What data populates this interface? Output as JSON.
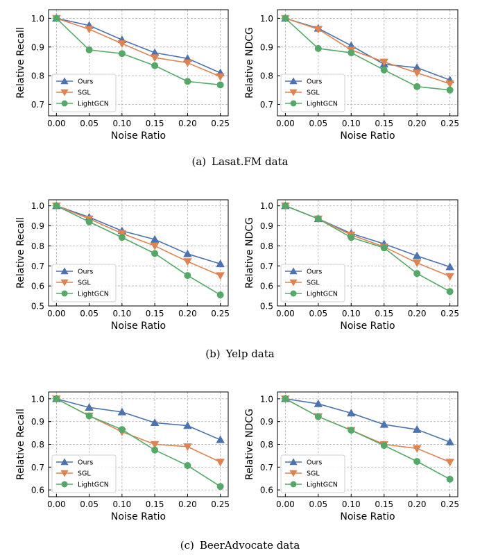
{
  "colors": {
    "Ours": "#4c72b0",
    "SGL": "#dd8452",
    "LightGCN": "#55a868"
  },
  "captions": [
    {
      "label": "(a)",
      "text": "Lasat.FM data"
    },
    {
      "label": "(b)",
      "text": "Yelp data"
    },
    {
      "label": "(c)",
      "text": "BeerAdvocate data"
    }
  ],
  "chart_data": [
    {
      "type": "line",
      "dataset": "Lasat.FM",
      "ylabel": "Relative Recall",
      "xlabel": "Noise Ratio",
      "x": [
        0.0,
        0.05,
        0.1,
        0.15,
        0.2,
        0.25
      ],
      "xticks": [
        "0.00",
        "0.05",
        "0.10",
        "0.15",
        "0.20",
        "0.25"
      ],
      "ylim": [
        0.66,
        1.03
      ],
      "yticks": [
        0.7,
        0.8,
        0.9,
        1.0
      ],
      "ytick_labels": [
        "0.7",
        "0.8",
        "0.9",
        "1.0"
      ],
      "grid": true,
      "legend": "lower-left",
      "series": [
        {
          "name": "Ours",
          "marker": "triangle-up",
          "values": [
            1.0,
            0.975,
            0.925,
            0.88,
            0.86,
            0.81
          ]
        },
        {
          "name": "SGL",
          "marker": "triangle-down",
          "values": [
            1.0,
            0.962,
            0.912,
            0.863,
            0.845,
            0.797
          ]
        },
        {
          "name": "LightGCN",
          "marker": "circle",
          "values": [
            1.0,
            0.89,
            0.877,
            0.835,
            0.78,
            0.768
          ]
        }
      ]
    },
    {
      "type": "line",
      "dataset": "Lasat.FM",
      "ylabel": "Relative NDCG",
      "xlabel": "Noise Ratio",
      "x": [
        0.0,
        0.05,
        0.1,
        0.15,
        0.2,
        0.25
      ],
      "xticks": [
        "0.00",
        "0.05",
        "0.10",
        "0.15",
        "0.20",
        "0.25"
      ],
      "ylim": [
        0.66,
        1.03
      ],
      "yticks": [
        0.7,
        0.8,
        0.9,
        1.0
      ],
      "ytick_labels": [
        "0.7",
        "0.8",
        "0.9",
        "1.0"
      ],
      "grid": true,
      "legend": "lower-left",
      "series": [
        {
          "name": "Ours",
          "marker": "triangle-up",
          "values": [
            1.0,
            0.965,
            0.905,
            0.84,
            0.828,
            0.785
          ]
        },
        {
          "name": "SGL",
          "marker": "triangle-down",
          "values": [
            1.0,
            0.962,
            0.89,
            0.848,
            0.81,
            0.772
          ]
        },
        {
          "name": "LightGCN",
          "marker": "circle",
          "values": [
            1.0,
            0.895,
            0.88,
            0.82,
            0.762,
            0.75
          ]
        }
      ]
    },
    {
      "type": "line",
      "dataset": "Yelp",
      "ylabel": "Relative Recall",
      "xlabel": "Noise Ratio",
      "x": [
        0.0,
        0.05,
        0.1,
        0.15,
        0.2,
        0.25
      ],
      "xticks": [
        "0.00",
        "0.05",
        "0.10",
        "0.15",
        "0.20",
        "0.25"
      ],
      "ylim": [
        0.5,
        1.03
      ],
      "yticks": [
        0.5,
        0.6,
        0.7,
        0.8,
        0.9,
        1.0
      ],
      "ytick_labels": [
        "0.5",
        "0.6",
        "0.7",
        "0.8",
        "0.9",
        "1.0"
      ],
      "grid": true,
      "legend": "lower-left",
      "series": [
        {
          "name": "Ours",
          "marker": "triangle-up",
          "values": [
            1.0,
            0.943,
            0.875,
            0.832,
            0.76,
            0.71
          ]
        },
        {
          "name": "SGL",
          "marker": "triangle-down",
          "values": [
            1.0,
            0.935,
            0.862,
            0.8,
            0.722,
            0.652
          ]
        },
        {
          "name": "LightGCN",
          "marker": "circle",
          "values": [
            1.0,
            0.92,
            0.842,
            0.762,
            0.652,
            0.555
          ]
        }
      ]
    },
    {
      "type": "line",
      "dataset": "Yelp",
      "ylabel": "Relative NDCG",
      "xlabel": "Noise Ratio",
      "x": [
        0.0,
        0.05,
        0.1,
        0.15,
        0.2,
        0.25
      ],
      "xticks": [
        "0.00",
        "0.05",
        "0.10",
        "0.15",
        "0.20",
        "0.25"
      ],
      "ylim": [
        0.5,
        1.03
      ],
      "yticks": [
        0.5,
        0.6,
        0.7,
        0.8,
        0.9,
        1.0
      ],
      "ytick_labels": [
        "0.5",
        "0.6",
        "0.7",
        "0.8",
        "0.9",
        "1.0"
      ],
      "grid": true,
      "legend": "lower-left",
      "series": [
        {
          "name": "Ours",
          "marker": "triangle-up",
          "values": [
            1.0,
            0.935,
            0.862,
            0.81,
            0.75,
            0.695
          ]
        },
        {
          "name": "SGL",
          "marker": "triangle-down",
          "values": [
            1.0,
            0.935,
            0.855,
            0.795,
            0.715,
            0.648
          ]
        },
        {
          "name": "LightGCN",
          "marker": "circle",
          "values": [
            1.0,
            0.935,
            0.842,
            0.79,
            0.662,
            0.572
          ]
        }
      ]
    },
    {
      "type": "line",
      "dataset": "BeerAdvocate",
      "ylabel": "Relative Recall",
      "xlabel": "Noise Ratio",
      "x": [
        0.0,
        0.05,
        0.1,
        0.15,
        0.2,
        0.25
      ],
      "xticks": [
        "0.00",
        "0.05",
        "0.10",
        "0.15",
        "0.20",
        "0.25"
      ],
      "ylim": [
        0.57,
        1.03
      ],
      "yticks": [
        0.6,
        0.7,
        0.8,
        0.9,
        1.0
      ],
      "ytick_labels": [
        "0.6",
        "0.7",
        "0.8",
        "0.9",
        "1.0"
      ],
      "grid": true,
      "legend": "lower-left",
      "series": [
        {
          "name": "Ours",
          "marker": "triangle-up",
          "values": [
            1.0,
            0.962,
            0.942,
            0.895,
            0.882,
            0.82
          ]
        },
        {
          "name": "SGL",
          "marker": "triangle-down",
          "values": [
            1.0,
            0.925,
            0.855,
            0.8,
            0.79,
            0.722
          ]
        },
        {
          "name": "LightGCN",
          "marker": "circle",
          "values": [
            1.0,
            0.925,
            0.865,
            0.775,
            0.707,
            0.615
          ]
        }
      ]
    },
    {
      "type": "line",
      "dataset": "BeerAdvocate",
      "ylabel": "Relative NDCG",
      "xlabel": "Noise Ratio",
      "x": [
        0.0,
        0.05,
        0.1,
        0.15,
        0.2,
        0.25
      ],
      "xticks": [
        "0.00",
        "0.05",
        "0.10",
        "0.15",
        "0.20",
        "0.25"
      ],
      "ylim": [
        0.57,
        1.03
      ],
      "yticks": [
        0.6,
        0.7,
        0.8,
        0.9,
        1.0
      ],
      "ytick_labels": [
        "0.6",
        "0.7",
        "0.8",
        "0.9",
        "1.0"
      ],
      "grid": true,
      "legend": "lower-left",
      "series": [
        {
          "name": "Ours",
          "marker": "triangle-up",
          "values": [
            1.0,
            0.978,
            0.937,
            0.887,
            0.865,
            0.81
          ]
        },
        {
          "name": "SGL",
          "marker": "triangle-down",
          "values": [
            1.0,
            0.922,
            0.862,
            0.8,
            0.782,
            0.722
          ]
        },
        {
          "name": "LightGCN",
          "marker": "circle",
          "values": [
            1.0,
            0.922,
            0.862,
            0.795,
            0.725,
            0.647
          ]
        }
      ]
    }
  ]
}
